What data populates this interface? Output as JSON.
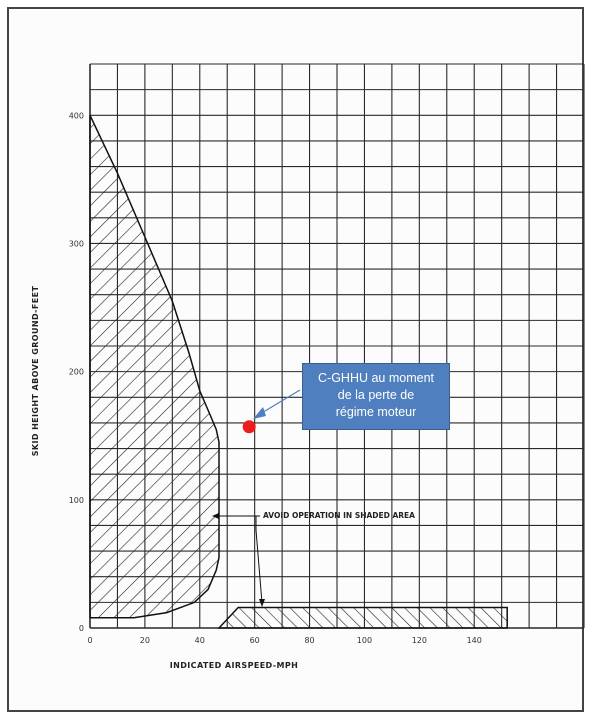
{
  "chart_data": {
    "type": "area",
    "xlabel": "INDICATED AIRSPEED-MPH",
    "ylabel": "SKID HEIGHT ABOVE GROUND-FEET",
    "xlim": [
      0,
      180
    ],
    "ylim": [
      0,
      440
    ],
    "x_ticks": [
      "0",
      "20",
      "40",
      "60",
      "80",
      "100",
      "120",
      "140"
    ],
    "y_ticks": [
      "0",
      "100",
      "200",
      "300",
      "400"
    ],
    "grid": true,
    "shaded_regions": [
      {
        "region": "low-airspeed",
        "boundary": [
          [
            0,
            400
          ],
          [
            10,
            355
          ],
          [
            20,
            305
          ],
          [
            30,
            255
          ],
          [
            36,
            215
          ],
          [
            40,
            185
          ],
          [
            44,
            165
          ],
          [
            46,
            155
          ],
          [
            47,
            145
          ],
          [
            47,
            100
          ],
          [
            47,
            55
          ],
          [
            46,
            45
          ],
          [
            43,
            30
          ],
          [
            38,
            20
          ],
          [
            28,
            12
          ],
          [
            16,
            8
          ],
          [
            0,
            8
          ]
        ]
      },
      {
        "region": "low-height",
        "boundary": [
          [
            47,
            0
          ],
          [
            54,
            16
          ],
          [
            152,
            16
          ],
          [
            152,
            0
          ]
        ]
      }
    ],
    "annotation": "AVOID OPERATION IN SHADED AREA",
    "marker": {
      "x": 58,
      "y": 157,
      "color": "#ee1c1c"
    },
    "callout": [
      "C-GHHU au moment",
      "de la perte de",
      "régime moteur"
    ]
  }
}
